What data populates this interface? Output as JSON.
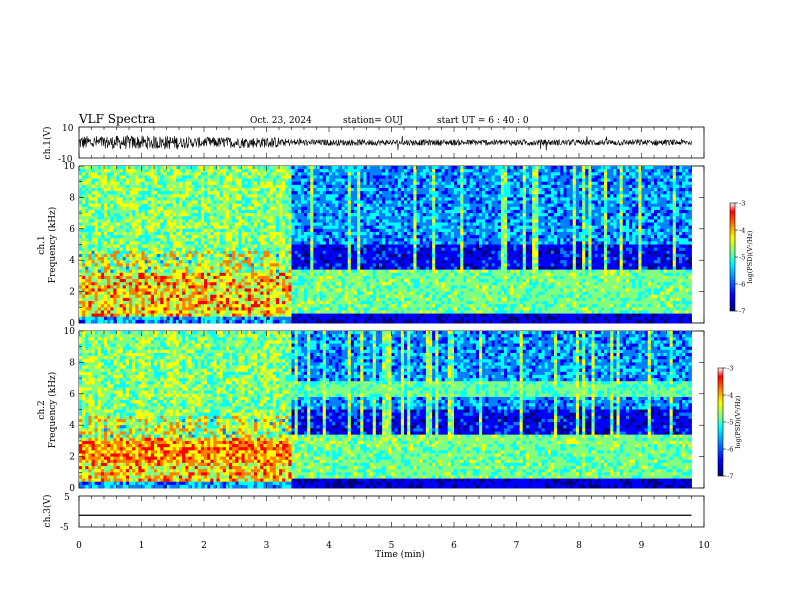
{
  "header": {
    "title": "VLF Spectra",
    "date": "Oct. 23, 2024",
    "station": "station= OUJ",
    "start_ut": "start  UT =  6 : 40 : 0"
  },
  "colorbar": {
    "label": "log(PSD)(V²/Hz)",
    "ticks": [
      "-3",
      "-4",
      "-5",
      "-6",
      "-7"
    ],
    "colors": [
      "#000080",
      "#0000ff",
      "#0080ff",
      "#00ffff",
      "#80ff80",
      "#ffff00",
      "#ff8000",
      "#ff0000",
      "#ffffff"
    ]
  },
  "chart_data": [
    {
      "type": "line",
      "name": "waveform-ch1",
      "ylabel": "ch.1(V)",
      "ylim": [
        -10,
        10
      ],
      "yticks": [
        "10",
        "-10"
      ],
      "xlim": [
        0,
        10
      ],
      "x_note": "noisy waveform, larger amplitude before ~1.6 min and 2–3 min"
    },
    {
      "type": "heatmap",
      "name": "spectrogram-ch1",
      "ylabel": "ch.1",
      "ylabel2": "Frequency  (kHz)",
      "ylim": [
        0,
        10
      ],
      "yticks": [
        "0",
        "2",
        "4",
        "6",
        "8",
        "10"
      ],
      "xlim": [
        0,
        9.8
      ],
      "transition_time_min": 3.4,
      "clim": [
        -7,
        -3
      ]
    },
    {
      "type": "heatmap",
      "name": "spectrogram-ch2",
      "ylabel": "ch.2",
      "ylabel2": "Frequency  (kHz)",
      "ylim": [
        0,
        10
      ],
      "yticks": [
        "0",
        "2",
        "4",
        "6",
        "8",
        "10"
      ],
      "xlim": [
        0,
        9.8
      ],
      "transition_time_min": 3.4,
      "clim": [
        -7,
        -3
      ]
    },
    {
      "type": "line",
      "name": "waveform-ch3",
      "ylabel": "ch.3(V)",
      "ylim": [
        -5,
        5
      ],
      "yticks": [
        "5",
        "0",
        "-5"
      ],
      "xlim": [
        0,
        10
      ],
      "value": -1.2
    }
  ],
  "x_axis": {
    "label": "Time  (min)",
    "range": [
      0,
      10
    ],
    "ticks": [
      "0",
      "1",
      "2",
      "3",
      "4",
      "5",
      "6",
      "7",
      "8",
      "9",
      "10"
    ]
  }
}
